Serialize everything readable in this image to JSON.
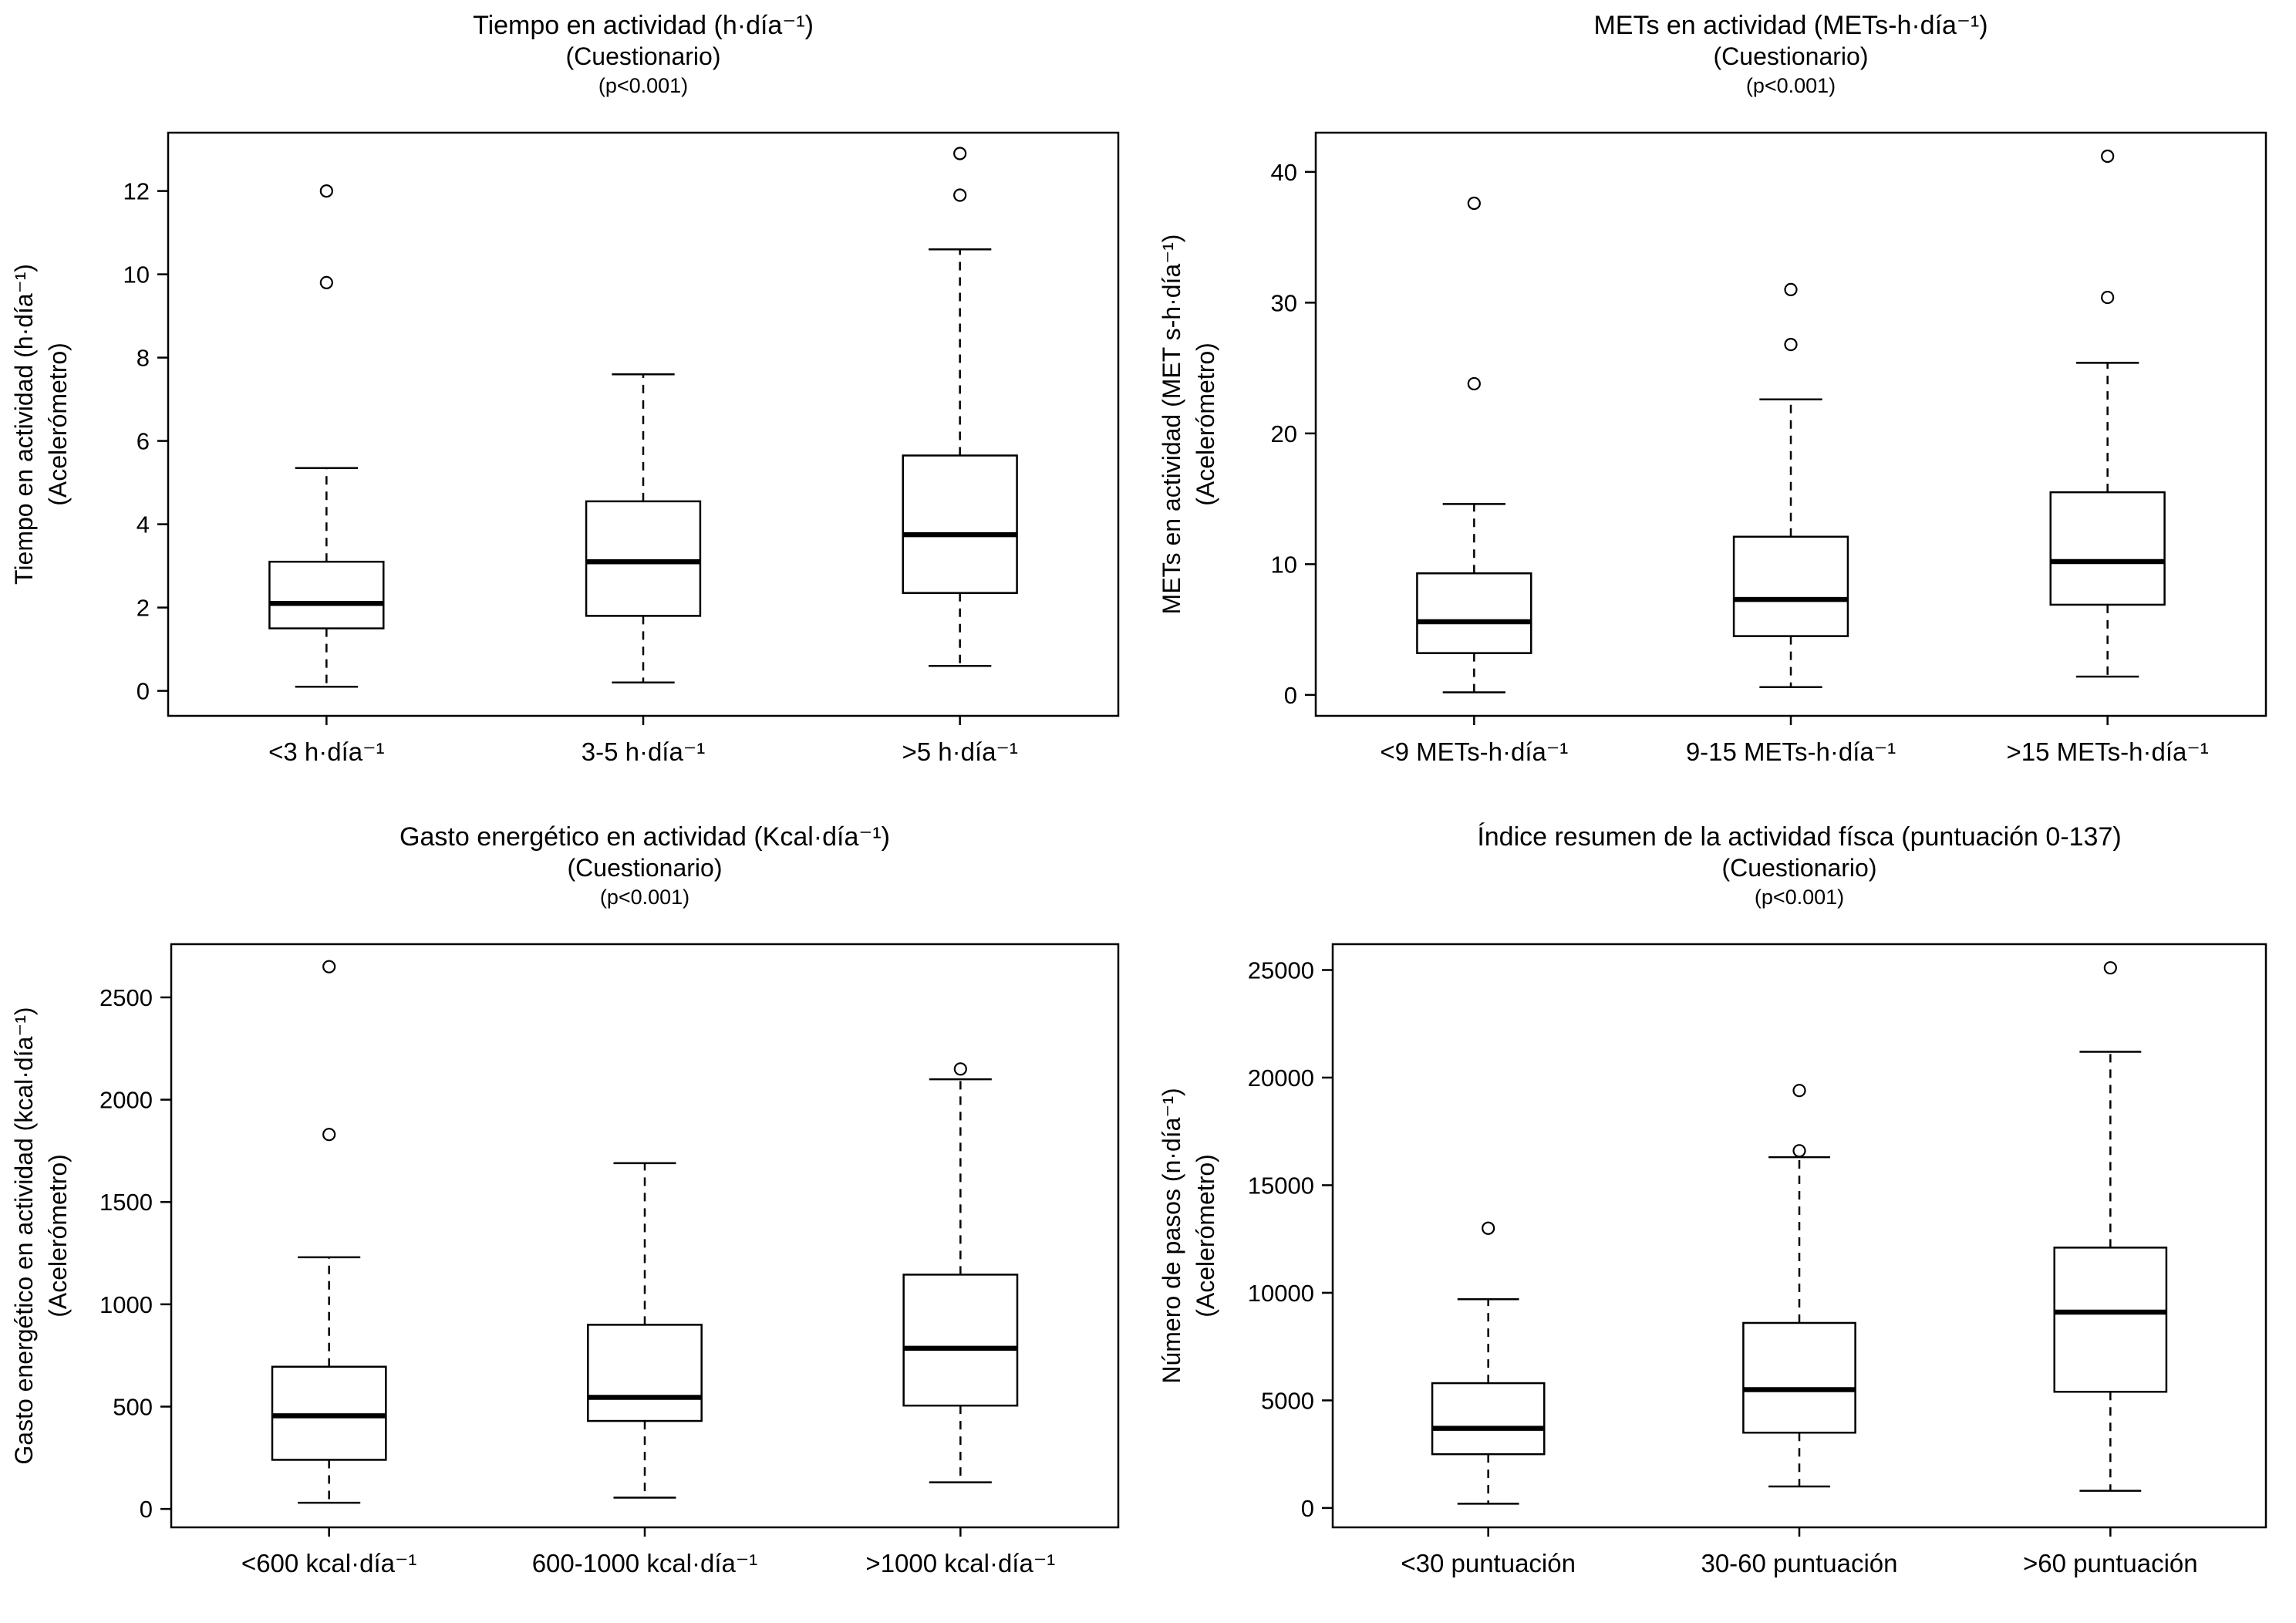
{
  "page": {
    "background": "#ffffff",
    "foreground": "#000000",
    "description": "Figure with four box-and-whisker plots comparing questionnaire categories vs accelerometer measurements"
  },
  "chart_data": [
    {
      "id": "tiempo-en-actividad",
      "type": "boxplot",
      "title": "Tiempo en actividad (h·día⁻¹)",
      "subtitle": "(Cuestionario)",
      "pvalue": "(p<0.001)",
      "ylabel_lines": [
        "Tiempo en actividad (h·día⁻¹)",
        "(Acelerómetro)"
      ],
      "xlabel": "",
      "categories": [
        "<3 h·día⁻¹",
        "3-5 h·día⁻¹",
        ">5 h·día⁻¹"
      ],
      "ylim": [
        -0.6,
        13.4
      ],
      "yticks": [
        0,
        2,
        4,
        6,
        8,
        10,
        12
      ],
      "grid": false,
      "legend": "none",
      "boxes": [
        {
          "whisker_low": 0.1,
          "q1": 1.5,
          "median": 2.1,
          "q3": 3.1,
          "whisker_high": 5.35,
          "outliers": [
            9.8,
            12.0
          ]
        },
        {
          "whisker_low": 0.2,
          "q1": 1.8,
          "median": 3.1,
          "q3": 4.55,
          "whisker_high": 7.6,
          "outliers": []
        },
        {
          "whisker_low": 0.6,
          "q1": 2.35,
          "median": 3.75,
          "q3": 5.65,
          "whisker_high": 10.6,
          "outliers": [
            11.9,
            12.9
          ]
        }
      ]
    },
    {
      "id": "mets-en-actividad",
      "type": "boxplot",
      "title": "METs en actividad (METs-h·día⁻¹)",
      "subtitle": "(Cuestionario)",
      "pvalue": "(p<0.001)",
      "ylabel_lines": [
        "METs en actividad (MET s-h·día⁻¹)",
        "(Acelerómetro)"
      ],
      "xlabel": "",
      "categories": [
        "<9 METs-h·día⁻¹",
        "9-15 METs-h·día⁻¹",
        ">15 METs-h·día⁻¹"
      ],
      "ylim": [
        -1.6,
        43.0
      ],
      "yticks": [
        0,
        10,
        20,
        30,
        40
      ],
      "grid": false,
      "legend": "none",
      "boxes": [
        {
          "whisker_low": 0.2,
          "q1": 3.2,
          "median": 5.6,
          "q3": 9.3,
          "whisker_high": 14.6,
          "outliers": [
            23.8,
            37.6
          ]
        },
        {
          "whisker_low": 0.6,
          "q1": 4.5,
          "median": 7.3,
          "q3": 12.1,
          "whisker_high": 22.6,
          "outliers": [
            26.8,
            31.0
          ]
        },
        {
          "whisker_low": 1.4,
          "q1": 6.9,
          "median": 10.2,
          "q3": 15.5,
          "whisker_high": 25.4,
          "outliers": [
            30.4,
            41.2
          ]
        }
      ]
    },
    {
      "id": "gasto-energetico",
      "type": "boxplot",
      "title": "Gasto energético en actividad (Kcal·día⁻¹)",
      "subtitle": "(Cuestionario)",
      "pvalue": "(p<0.001)",
      "ylabel_lines": [
        "Gasto energético en actividad (kcal·día⁻¹)",
        "(Acelerómetro)"
      ],
      "xlabel": "",
      "categories": [
        "<600 kcal·día⁻¹",
        "600-1000 kcal·día⁻¹",
        ">1000 kcal·día⁻¹"
      ],
      "ylim": [
        -90,
        2760
      ],
      "yticks": [
        0,
        500,
        1000,
        1500,
        2000,
        2500
      ],
      "grid": false,
      "legend": "none",
      "boxes": [
        {
          "whisker_low": 30,
          "q1": 240,
          "median": 455,
          "q3": 695,
          "whisker_high": 1230,
          "outliers": [
            1830,
            2650
          ]
        },
        {
          "whisker_low": 55,
          "q1": 430,
          "median": 545,
          "q3": 900,
          "whisker_high": 1690,
          "outliers": []
        },
        {
          "whisker_low": 130,
          "q1": 505,
          "median": 785,
          "q3": 1145,
          "whisker_high": 2100,
          "outliers": [
            2150
          ]
        }
      ]
    },
    {
      "id": "indice-resumen",
      "type": "boxplot",
      "title": "Índice resumen de la actividad físca (puntuación 0-137)",
      "subtitle": "(Cuestionario)",
      "pvalue": "(p<0.001)",
      "ylabel_lines": [
        "Número de pasos (n·día⁻¹)",
        "(Acelerómetro)"
      ],
      "xlabel": "",
      "categories": [
        "<30 puntuación",
        "30-60 puntuación",
        ">60 puntuación"
      ],
      "ylim": [
        -900,
        26200
      ],
      "yticks": [
        0,
        5000,
        10000,
        15000,
        20000,
        25000
      ],
      "grid": false,
      "legend": "none",
      "boxes": [
        {
          "whisker_low": 200,
          "q1": 2500,
          "median": 3700,
          "q3": 5800,
          "whisker_high": 9700,
          "outliers": [
            13000
          ]
        },
        {
          "whisker_low": 1000,
          "q1": 3500,
          "median": 5500,
          "q3": 8600,
          "whisker_high": 16300,
          "outliers": [
            16600,
            19400
          ]
        },
        {
          "whisker_low": 800,
          "q1": 5400,
          "median": 9100,
          "q3": 12100,
          "whisker_high": 21200,
          "outliers": [
            25100
          ]
        }
      ]
    }
  ],
  "style": {
    "line_color": "#000000",
    "box_fill": "#ffffff",
    "median_stroke_width": 6.5,
    "line_stroke_width": 2.5,
    "outlier_radius": 7.5
  }
}
